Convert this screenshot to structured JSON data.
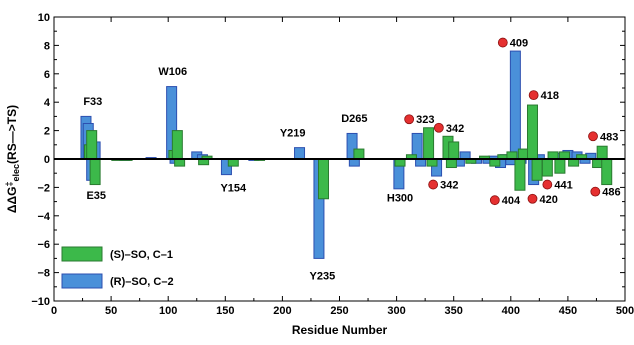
{
  "chart_data": {
    "type": "bar",
    "title": "",
    "xlabel": "Residue Number",
    "ylabel_parts": [
      "ΔΔG",
      "‡",
      "elec",
      "(RS—>TS)"
    ],
    "xlim": [
      0,
      500
    ],
    "ylim": [
      -10,
      10
    ],
    "x_ticks": [
      0,
      50,
      100,
      150,
      200,
      250,
      300,
      350,
      400,
      450,
      500
    ],
    "y_ticks": [
      -10,
      -8,
      -6,
      -4,
      -2,
      0,
      2,
      4,
      6,
      8,
      10
    ],
    "y_tick_labels": [
      "−10",
      "−8",
      "−6",
      "−4",
      "−2",
      "0",
      "2",
      "4",
      "6",
      "8",
      "10"
    ],
    "grid": false,
    "legend": {
      "placement": "bottom-left",
      "items": [
        {
          "label": "(S)–SO, C–1",
          "color": "#3cb94a"
        },
        {
          "label": "(R)–SO, C–2",
          "color": "#4a90d9"
        }
      ]
    },
    "series": [
      {
        "name": "(R)–SO, C–2",
        "color": "#4a90d9",
        "edge": "#2c4fb0",
        "bars": [
          {
            "x": 28,
            "value": 3.0
          },
          {
            "x": 30,
            "value": 2.5
          },
          {
            "x": 33,
            "value": -1.5
          },
          {
            "x": 36,
            "value": 1.2
          },
          {
            "x": 62,
            "value": -0.1
          },
          {
            "x": 85,
            "value": 0.1
          },
          {
            "x": 103,
            "value": 5.1
          },
          {
            "x": 106,
            "value": -0.3
          },
          {
            "x": 125,
            "value": 0.5
          },
          {
            "x": 130,
            "value": 0.3
          },
          {
            "x": 151,
            "value": -1.1
          },
          {
            "x": 175,
            "value": -0.1
          },
          {
            "x": 215,
            "value": 0.8
          },
          {
            "x": 232,
            "value": -7.0
          },
          {
            "x": 261,
            "value": 1.8
          },
          {
            "x": 263,
            "value": -0.5
          },
          {
            "x": 302,
            "value": -2.1
          },
          {
            "x": 318,
            "value": 1.8
          },
          {
            "x": 321,
            "value": -0.5
          },
          {
            "x": 335,
            "value": -1.2
          },
          {
            "x": 355,
            "value": -0.5
          },
          {
            "x": 360,
            "value": 0.5
          },
          {
            "x": 370,
            "value": -0.3
          },
          {
            "x": 380,
            "value": -0.3
          },
          {
            "x": 385,
            "value": 0.2
          },
          {
            "x": 391,
            "value": -0.6
          },
          {
            "x": 395,
            "value": 0.3
          },
          {
            "x": 400,
            "value": -0.4
          },
          {
            "x": 404,
            "value": 7.6
          },
          {
            "x": 409,
            "value": -0.3
          },
          {
            "x": 415,
            "value": 0.2
          },
          {
            "x": 420,
            "value": -1.8
          },
          {
            "x": 425,
            "value": 0.3
          },
          {
            "x": 440,
            "value": 0.4
          },
          {
            "x": 450,
            "value": 0.6
          },
          {
            "x": 458,
            "value": 0.5
          },
          {
            "x": 465,
            "value": -0.3
          },
          {
            "x": 470,
            "value": 0.4
          }
        ]
      },
      {
        "name": "(S)–SO, C–1",
        "color": "#3cb94a",
        "edge": "#2a7a30",
        "bars": [
          {
            "x": 31,
            "value": 1.0
          },
          {
            "x": 33,
            "value": 2.0
          },
          {
            "x": 36,
            "value": -1.8
          },
          {
            "x": 55,
            "value": -0.1
          },
          {
            "x": 64,
            "value": -0.1
          },
          {
            "x": 105,
            "value": 0.6
          },
          {
            "x": 108,
            "value": 2.0
          },
          {
            "x": 110,
            "value": -0.5
          },
          {
            "x": 131,
            "value": -0.4
          },
          {
            "x": 134,
            "value": 0.2
          },
          {
            "x": 157,
            "value": -0.5
          },
          {
            "x": 180,
            "value": -0.1
          },
          {
            "x": 236,
            "value": -2.8
          },
          {
            "x": 267,
            "value": 0.7
          },
          {
            "x": 303,
            "value": -0.5
          },
          {
            "x": 313,
            "value": 0.3
          },
          {
            "x": 328,
            "value": 2.2
          },
          {
            "x": 331,
            "value": -0.5
          },
          {
            "x": 345,
            "value": 1.6
          },
          {
            "x": 348,
            "value": -0.6
          },
          {
            "x": 350,
            "value": 1.2
          },
          {
            "x": 365,
            "value": -0.3
          },
          {
            "x": 377,
            "value": 0.2
          },
          {
            "x": 386,
            "value": -0.5
          },
          {
            "x": 393,
            "value": 0.3
          },
          {
            "x": 401,
            "value": 0.5
          },
          {
            "x": 408,
            "value": -2.2
          },
          {
            "x": 411,
            "value": 0.7
          },
          {
            "x": 419,
            "value": 3.8
          },
          {
            "x": 423,
            "value": -1.5
          },
          {
            "x": 432,
            "value": -1.2
          },
          {
            "x": 437,
            "value": 0.5
          },
          {
            "x": 443,
            "value": -1.0
          },
          {
            "x": 447,
            "value": 0.5
          },
          {
            "x": 455,
            "value": -0.5
          },
          {
            "x": 462,
            "value": 0.3
          },
          {
            "x": 476,
            "value": -0.6
          },
          {
            "x": 480,
            "value": 0.9
          },
          {
            "x": 484,
            "value": -1.8
          }
        ]
      }
    ],
    "residue_labels": [
      {
        "text": "F33",
        "x": 34,
        "y": 3.8
      },
      {
        "text": "E35",
        "x": 37,
        "y": -2.8
      },
      {
        "text": "W106",
        "x": 104,
        "y": 5.9
      },
      {
        "text": "Y154",
        "x": 157,
        "y": -2.3
      },
      {
        "text": "Y219",
        "x": 209,
        "y": 1.6
      },
      {
        "text": "Y235",
        "x": 235,
        "y": -8.5
      },
      {
        "text": "D265",
        "x": 263,
        "y": 2.6
      },
      {
        "text": "H300",
        "x": 303,
        "y": -3.0
      }
    ],
    "site_markers": [
      {
        "text": "323",
        "x": 311,
        "y": 2.8
      },
      {
        "text": "342",
        "x": 337,
        "y": 2.2
      },
      {
        "text": "342",
        "x": 332,
        "y": -1.8
      },
      {
        "text": "409",
        "x": 393,
        "y": 8.2
      },
      {
        "text": "418",
        "x": 420,
        "y": 4.5
      },
      {
        "text": "404",
        "x": 386,
        "y": -2.9
      },
      {
        "text": "420",
        "x": 419,
        "y": -2.8
      },
      {
        "text": "441",
        "x": 432,
        "y": -1.8
      },
      {
        "text": "483",
        "x": 472,
        "y": 1.6
      },
      {
        "text": "486",
        "x": 474,
        "y": -2.3
      }
    ],
    "marker_color": "#e53030"
  }
}
